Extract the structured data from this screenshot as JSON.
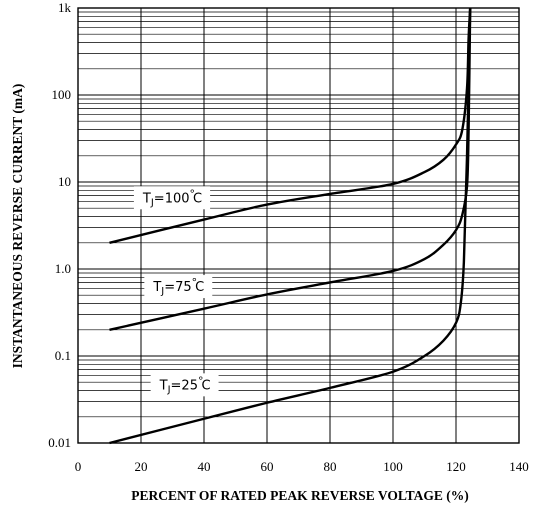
{
  "chart_data": {
    "type": "line",
    "title": "",
    "xlabel": "PERCENT OF RATED PEAK REVERSE VOLTAGE (%)",
    "ylabel": "INSTANTANEOUS REVERSE CURRENT (mA)",
    "x_ticks": [
      0,
      20,
      40,
      60,
      80,
      100,
      120,
      140
    ],
    "y_ticks": [
      {
        "value": 0.01,
        "label": "0.01"
      },
      {
        "value": 0.1,
        "label": "0.1"
      },
      {
        "value": 1,
        "label": "1.0"
      },
      {
        "value": 10,
        "label": "10"
      },
      {
        "value": 100,
        "label": "100"
      },
      {
        "value": 1000,
        "label": "1k"
      }
    ],
    "xlim": [
      0,
      140
    ],
    "ylim": [
      0.01,
      1000
    ],
    "yscale": "log",
    "grid": true,
    "series": [
      {
        "name": "TJ=100°C",
        "label_parts": {
          "prefix": "T",
          "sub": "J",
          "suffix": "=100",
          "unit": "C"
        },
        "label_at": [
          30,
          6.5
        ],
        "x": [
          10,
          40,
          60,
          80,
          100,
          110,
          116,
          120,
          122,
          123.5,
          124,
          124.5
        ],
        "y": [
          2.0,
          3.7,
          5.5,
          7.3,
          9.5,
          13,
          18,
          27,
          40,
          120,
          450,
          1000
        ]
      },
      {
        "name": "TJ=75°C",
        "label_parts": {
          "prefix": "T",
          "sub": "J",
          "suffix": "=75",
          "unit": "C"
        },
        "label_at": [
          32,
          0.62
        ],
        "x": [
          10,
          40,
          60,
          80,
          100,
          110,
          116,
          120,
          122,
          123.5,
          124,
          124.5
        ],
        "y": [
          0.2,
          0.35,
          0.51,
          0.7,
          0.95,
          1.3,
          1.9,
          2.8,
          4.2,
          9,
          40,
          1000
        ]
      },
      {
        "name": "TJ=25°C",
        "label_parts": {
          "prefix": "T",
          "sub": "J",
          "suffix": "=25",
          "unit": "C"
        },
        "label_at": [
          34,
          0.046
        ],
        "x": [
          10,
          40,
          60,
          80,
          100,
          110,
          116,
          120,
          121.5,
          122.5,
          123.5,
          124.5
        ],
        "y": [
          0.01,
          0.019,
          0.029,
          0.043,
          0.066,
          0.1,
          0.15,
          0.24,
          0.4,
          1.2,
          20,
          1000
        ]
      }
    ]
  }
}
